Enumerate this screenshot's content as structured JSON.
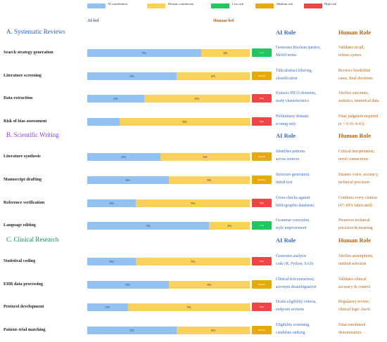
{
  "legend": {
    "items": [
      {
        "label": "AI contribution",
        "color": "#93c2f2"
      },
      {
        "label": "Human contribution",
        "color": "#fad15a"
      },
      {
        "label": "Low risk",
        "color": "#22c55e"
      },
      {
        "label": "Medium risk",
        "color": "#e6ab0a"
      },
      {
        "label": "High risk",
        "color": "#ef4444"
      }
    ]
  },
  "header": {
    "ai_led": "AI-led",
    "human_led": "Human-led"
  },
  "colors": {
    "ai": "#93c2f2",
    "human": "#fad15a",
    "low": "#22c55e",
    "medium": "#e6ab0a",
    "high": "#ef4444"
  },
  "sections": [
    {
      "title": "A. Systematic Reviews",
      "color": "#2563c9",
      "ai_role_head": "AI Role",
      "human_role_head": "Human Role",
      "rows": [
        {
          "task": "Search strategy generation",
          "ai": 70,
          "human": 30,
          "ai_label": "70%",
          "human_label": "30%",
          "risk": "low",
          "risk_label": "Low",
          "ai_role": [
            "Generates Boolean queries,",
            "MeSH terms"
          ],
          "human_role": [
            "Validates recall,",
            "refines syntax"
          ]
        },
        {
          "task": "Literature screening",
          "ai": 55,
          "human": 45,
          "ai_label": "55%",
          "human_label": "45%",
          "risk": "medium",
          "risk_label": "Medium",
          "ai_role": [
            "Title/abstract filtering,",
            "classification"
          ],
          "human_role": [
            "Reviews borderline",
            "cases, final decisions"
          ]
        },
        {
          "task": "Data extraction",
          "ai": 35,
          "human": 65,
          "ai_label": "35%",
          "human_label": "65%",
          "risk": "high",
          "risk_label": "High",
          "ai_role": [
            "Extracts PICO elements,",
            "study characteristics"
          ],
          "human_role": [
            "Verifies outcomes,",
            "statistics, numerical data"
          ]
        },
        {
          "task": "Risk of bias assessment",
          "ai": 20,
          "human": 80,
          "ai_label": "",
          "human_label": "80%",
          "risk": "high",
          "risk_label": "High",
          "ai_role": [
            "Preliminary domain",
            "scoring only"
          ],
          "human_role": [
            "Final judgment required",
            "(κ = 0.16–0.43)"
          ]
        }
      ]
    },
    {
      "title": "B. Scientific Writing",
      "color": "#8b3fd9",
      "ai_role_head": "AI Role",
      "human_role_head": "Human Role",
      "rows": [
        {
          "task": "Literature synthesis",
          "ai": 45,
          "human": 55,
          "ai_label": "45%",
          "human_label": "55%",
          "risk": "medium",
          "risk_label": "Medium",
          "ai_role": [
            "Identifies patterns",
            "across sources"
          ],
          "human_role": [
            "Critical interpretation,",
            "novel connections"
          ]
        },
        {
          "task": "Manuscript drafting",
          "ai": 50,
          "human": 50,
          "ai_label": "50%",
          "human_label": "50%",
          "risk": "medium",
          "risk_label": "Medium",
          "ai_role": [
            "Structure generation,",
            "initial text"
          ],
          "human_role": [
            "Ensures voice, accuracy,",
            "technical precision"
          ]
        },
        {
          "task": "Reference verification",
          "ai": 30,
          "human": 70,
          "ai_label": "30%",
          "human_label": "70%",
          "risk": "high",
          "risk_label": "High",
          "ai_role": [
            "Cross-checks against",
            "bibliographic databases"
          ],
          "human_role": [
            "Confirms every citation",
            "(47–69% fabricated)"
          ]
        },
        {
          "task": "Language editing",
          "ai": 75,
          "human": 25,
          "ai_label": "75%",
          "human_label": "25%",
          "risk": "low",
          "risk_label": "Low",
          "ai_role": [
            "Grammar correction,",
            "style improvement"
          ],
          "human_role": [
            "Preserves technical",
            "precision & meaning"
          ]
        }
      ]
    },
    {
      "title": "C. Clinical Research",
      "color": "#15895a",
      "ai_role_head": "AI Role",
      "human_role_head": "Human Role",
      "rows": [
        {
          "task": "Statistical coding",
          "ai": 30,
          "human": 70,
          "ai_label": "30%",
          "human_label": "70%",
          "risk": "high",
          "risk_label": "High",
          "ai_role": [
            "Generates analysis",
            "code (R, Python, SAS)"
          ],
          "human_role": [
            "Verifies assumptions,",
            "method selection"
          ]
        },
        {
          "task": "EHR data processing",
          "ai": 50,
          "human": 50,
          "ai_label": "50%",
          "human_label": "50%",
          "risk": "medium",
          "risk_label": "Medium",
          "ai_role": [
            "Clinical text extraction,",
            "acronym disambiguation"
          ],
          "human_role": [
            "Validates clinical",
            "accuracy & context"
          ]
        },
        {
          "task": "Protocol development",
          "ai": 25,
          "human": 75,
          "ai_label": "25%",
          "human_label": "75%",
          "risk": "high",
          "risk_label": "High",
          "ai_role": [
            "Drafts eligibility criteria,",
            "endpoint sections"
          ],
          "human_role": [
            "Regulatory review,",
            "clinical logic check"
          ]
        },
        {
          "task": "Patient–trial matching",
          "ai": 55,
          "human": 45,
          "ai_label": "55%",
          "human_label": "45%",
          "risk": "medium",
          "risk_label": "Medium",
          "ai_role": [
            "Eligibility screening,",
            "candidate ranking"
          ],
          "human_role": [
            "Final enrollment",
            "determination"
          ]
        }
      ]
    }
  ]
}
